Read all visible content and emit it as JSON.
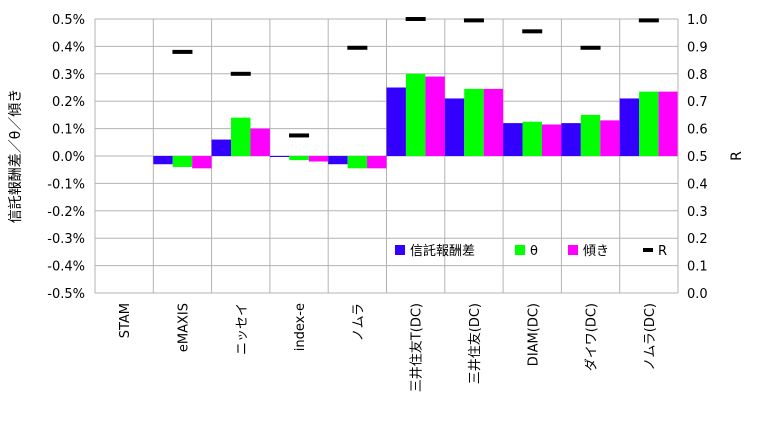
{
  "chart_data": {
    "type": "bar",
    "categories": [
      "STAM",
      "eMAXIS",
      "ニッセイ",
      "index-e",
      "ノムラ",
      "三井住友T(DC)",
      "三井住友(DC)",
      "DIAM(DC)",
      "ダイワ(DC)",
      "ノムラ(DC)"
    ],
    "series": [
      {
        "name": "信託報酬差",
        "axis": "left",
        "color": "#3300ff",
        "values": [
          null,
          -0.03,
          0.06,
          0.0,
          -0.03,
          0.25,
          0.21,
          0.12,
          0.12,
          0.21
        ]
      },
      {
        "name": "θ",
        "axis": "left",
        "color": "#00ff00",
        "values": [
          null,
          -0.04,
          0.14,
          -0.015,
          -0.045,
          0.3,
          0.245,
          0.125,
          0.15,
          0.235
        ]
      },
      {
        "name": "傾き",
        "axis": "left",
        "color": "#ff00ff",
        "values": [
          null,
          -0.045,
          0.1,
          -0.02,
          -0.045,
          0.29,
          0.245,
          0.115,
          0.13,
          0.235
        ]
      },
      {
        "name": "R",
        "axis": "right",
        "type": "marker",
        "color": "#000000",
        "values": [
          null,
          0.88,
          0.8,
          0.575,
          0.895,
          1.0,
          0.995,
          0.955,
          0.895,
          0.995
        ]
      }
    ],
    "ylabel": "信託報酬差／θ／傾き",
    "y2label": "R",
    "ylim": [
      -0.5,
      0.5
    ],
    "y2lim": [
      0.0,
      1.0
    ],
    "yticks": [
      "0.5%",
      "0.4%",
      "0.3%",
      "0.2%",
      "0.1%",
      "0.0%",
      "-0.1%",
      "-0.2%",
      "-0.3%",
      "-0.4%",
      "-0.5%"
    ],
    "y2ticks": [
      "1.0",
      "0.9",
      "0.8",
      "0.7",
      "0.6",
      "0.5",
      "0.4",
      "0.3",
      "0.2",
      "0.1",
      "0.0"
    ],
    "grid": true,
    "legend_position": "bottom-right-inside"
  }
}
